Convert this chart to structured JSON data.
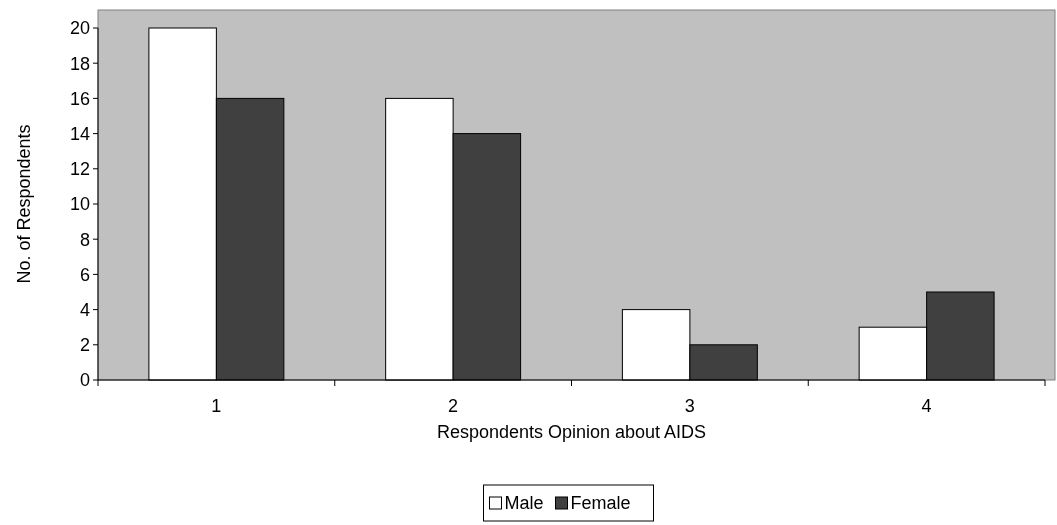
{
  "chart_data": {
    "type": "bar",
    "xlabel": "Respondents Opinion about AIDS",
    "ylabel": "No. of Respondents",
    "categories": [
      "1",
      "2",
      "3",
      "4"
    ],
    "series": [
      {
        "name": "Male",
        "color": "#ffffff",
        "values": [
          20,
          16,
          4,
          3
        ]
      },
      {
        "name": "Female",
        "color": "#404040",
        "values": [
          16,
          14,
          2,
          5
        ]
      }
    ],
    "ylim": [
      0,
      20
    ],
    "yticks": [
      0,
      2,
      4,
      6,
      8,
      10,
      12,
      14,
      16,
      18,
      20
    ],
    "grid": false,
    "legend": "bottom"
  }
}
